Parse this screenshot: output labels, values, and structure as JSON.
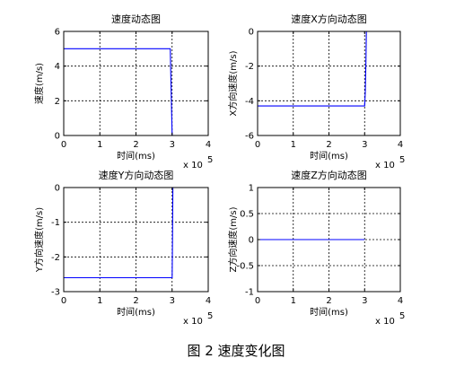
{
  "caption": "图 2  速度变化图",
  "colors": {
    "line": "#0000ff",
    "axes": "#000000",
    "grid": "#000000",
    "background": "#ffffff"
  },
  "chart_data": [
    {
      "type": "line",
      "title": "速度动态图",
      "xlabel": "时间(ms)",
      "ylabel": "速度(m/s)",
      "x_exponent_label": "x 10",
      "x_exponent_power": "5",
      "xlim": [
        0,
        4
      ],
      "ylim": [
        0,
        6
      ],
      "xticks": [
        "0",
        "1",
        "2",
        "3",
        "4"
      ],
      "yticks": [
        "0",
        "2",
        "4",
        "6"
      ],
      "grid": true,
      "series": [
        {
          "x": [
            0,
            2.95,
            2.96,
            3.0
          ],
          "y": [
            5.0,
            5.0,
            4.0,
            0.0
          ]
        }
      ]
    },
    {
      "type": "line",
      "title": "速度X方向动态图",
      "xlabel": "时间(ms)",
      "ylabel": "X方向速度(m/s)",
      "x_exponent_label": "x 10",
      "x_exponent_power": "5",
      "xlim": [
        0,
        4
      ],
      "ylim": [
        -6,
        0
      ],
      "xticks": [
        "0",
        "1",
        "2",
        "3",
        "4"
      ],
      "yticks": [
        "-6",
        "-4",
        "-2",
        "0"
      ],
      "grid": true,
      "series": [
        {
          "x": [
            0,
            3.0,
            3.02,
            3.04,
            3.05
          ],
          "y": [
            -4.3,
            -4.3,
            -3.5,
            -1.5,
            0.0
          ]
        }
      ]
    },
    {
      "type": "line",
      "title": "速度Y方向动态图",
      "xlabel": "时间(ms)",
      "ylabel": "Y方向速度(m/s)",
      "x_exponent_label": "x 10",
      "x_exponent_power": "5",
      "xlim": [
        0,
        4
      ],
      "ylim": [
        -3,
        0
      ],
      "xticks": [
        "0",
        "1",
        "2",
        "3",
        "4"
      ],
      "yticks": [
        "-3",
        "-2",
        "-1",
        "0"
      ],
      "grid": true,
      "series": [
        {
          "x": [
            0,
            3.0,
            3.01,
            3.02
          ],
          "y": [
            -2.6,
            -2.6,
            -1.5,
            0.0
          ]
        }
      ]
    },
    {
      "type": "line",
      "title": "速度Z方向动态图",
      "xlabel": "时间(ms)",
      "ylabel": "Z方向速度(m/s)",
      "x_exponent_label": "x 10",
      "x_exponent_power": "5",
      "xlim": [
        0,
        4
      ],
      "ylim": [
        -1,
        1
      ],
      "xticks": [
        "0",
        "1",
        "2",
        "3",
        "4"
      ],
      "yticks": [
        "-1",
        "-0.5",
        "0",
        "0.5",
        "1"
      ],
      "grid": true,
      "series": [
        {
          "x": [
            0,
            3.0
          ],
          "y": [
            0.0,
            0.0
          ]
        }
      ]
    }
  ]
}
